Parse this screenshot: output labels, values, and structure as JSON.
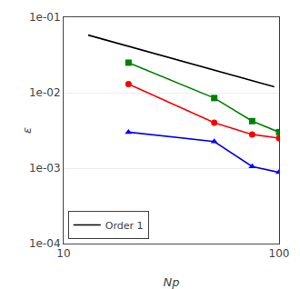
{
  "chart_data": {
    "type": "line",
    "xlabel": "Np",
    "ylabel": "ε",
    "log": true,
    "xlim": [
      10,
      100
    ],
    "xticks": [
      10,
      100
    ],
    "ylim": [
      0.0001,
      0.1
    ],
    "yticks": [
      {
        "value": 0.0001,
        "label": "1e-04"
      },
      {
        "value": 0.001,
        "label": "1e-03"
      },
      {
        "value": 0.01,
        "label": "1e-02"
      },
      {
        "value": 0.1,
        "label": "1e-01"
      }
    ],
    "grid": true,
    "legend": "lower left",
    "series": [
      {
        "name": "Order 1",
        "color": "black",
        "x": [
          13,
          95
        ],
        "values": [
          0.058,
          0.012
        ]
      },
      {
        "color": "green",
        "marker": "square",
        "x": [
          20,
          50,
          75,
          100
        ],
        "values": [
          0.025,
          0.0085,
          0.0042,
          0.003
        ]
      },
      {
        "color": "red",
        "marker": "circle",
        "x": [
          20,
          50,
          75,
          100
        ],
        "values": [
          0.013,
          0.004,
          0.0028,
          0.0025
        ]
      },
      {
        "color": "blue",
        "marker": "triangle-up",
        "x": [
          20,
          50,
          75,
          100
        ],
        "values": [
          0.003,
          0.00225,
          0.00105,
          0.00088
        ]
      }
    ]
  }
}
